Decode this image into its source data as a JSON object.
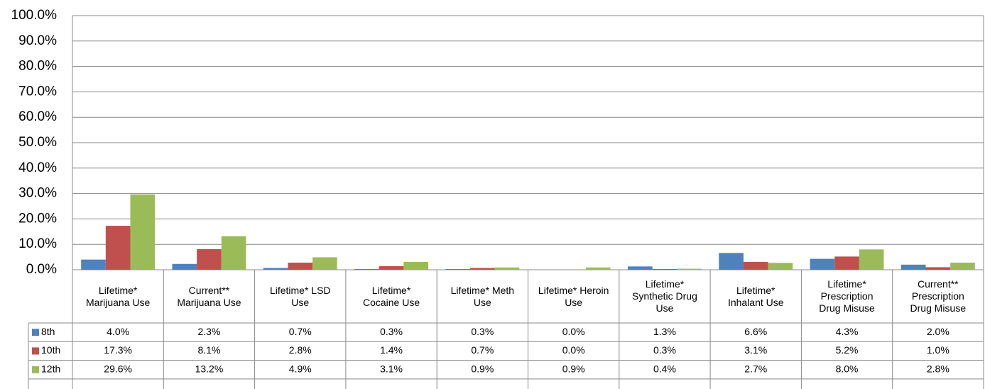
{
  "chart_data": {
    "type": "bar",
    "categories": [
      "Lifetime* Marijuana Use",
      "Current** Marijuana Use",
      "Lifetime* LSD Use",
      "Lifetime* Cocaine Use",
      "Lifetime* Meth Use",
      "Lifetime* Heroin Use",
      "Lifetime* Synthetic Drug Use",
      "Lifetime* Inhalant Use",
      "Lifetime* Prescription Drug Misuse",
      "Current** Prescription Drug Misuse"
    ],
    "series": [
      {
        "name": "8th",
        "color": "#4f81bd",
        "values": [
          4.0,
          2.3,
          0.7,
          0.3,
          0.3,
          0.0,
          1.3,
          6.6,
          4.3,
          2.0
        ],
        "value_labels": [
          "4.0%",
          "2.3%",
          "0.7%",
          "0.3%",
          "0.3%",
          "0.0%",
          "1.3%",
          "6.6%",
          "4.3%",
          "2.0%"
        ]
      },
      {
        "name": "10th",
        "color": "#c0504d",
        "values": [
          17.3,
          8.1,
          2.8,
          1.4,
          0.7,
          0.0,
          0.3,
          3.1,
          5.2,
          1.0
        ],
        "value_labels": [
          "17.3%",
          "8.1%",
          "2.8%",
          "1.4%",
          "0.7%",
          "0.0%",
          "0.3%",
          "3.1%",
          "5.2%",
          "1.0%"
        ]
      },
      {
        "name": "12th",
        "color": "#9bbb59",
        "values": [
          29.6,
          13.2,
          4.9,
          3.1,
          0.9,
          0.9,
          0.4,
          2.7,
          8.0,
          2.8
        ],
        "value_labels": [
          "29.6%",
          "13.2%",
          "4.9%",
          "3.1%",
          "0.9%",
          "0.9%",
          "0.4%",
          "2.7%",
          "8.0%",
          "2.8%"
        ]
      }
    ],
    "ylim": [
      0,
      100
    ],
    "yticks": [
      {
        "value": 0,
        "label": "0.0%"
      },
      {
        "value": 10,
        "label": "10.0%"
      },
      {
        "value": 20,
        "label": "20.0%"
      },
      {
        "value": 30,
        "label": "30.0%"
      },
      {
        "value": 40,
        "label": "40.0%"
      },
      {
        "value": 50,
        "label": "50.0%"
      },
      {
        "value": 60,
        "label": "60.0%"
      },
      {
        "value": 70,
        "label": "70.0%"
      },
      {
        "value": 80,
        "label": "80.0%"
      },
      {
        "value": 90,
        "label": "90.0%"
      },
      {
        "value": 100,
        "label": "100.0%"
      }
    ],
    "grid": true
  }
}
